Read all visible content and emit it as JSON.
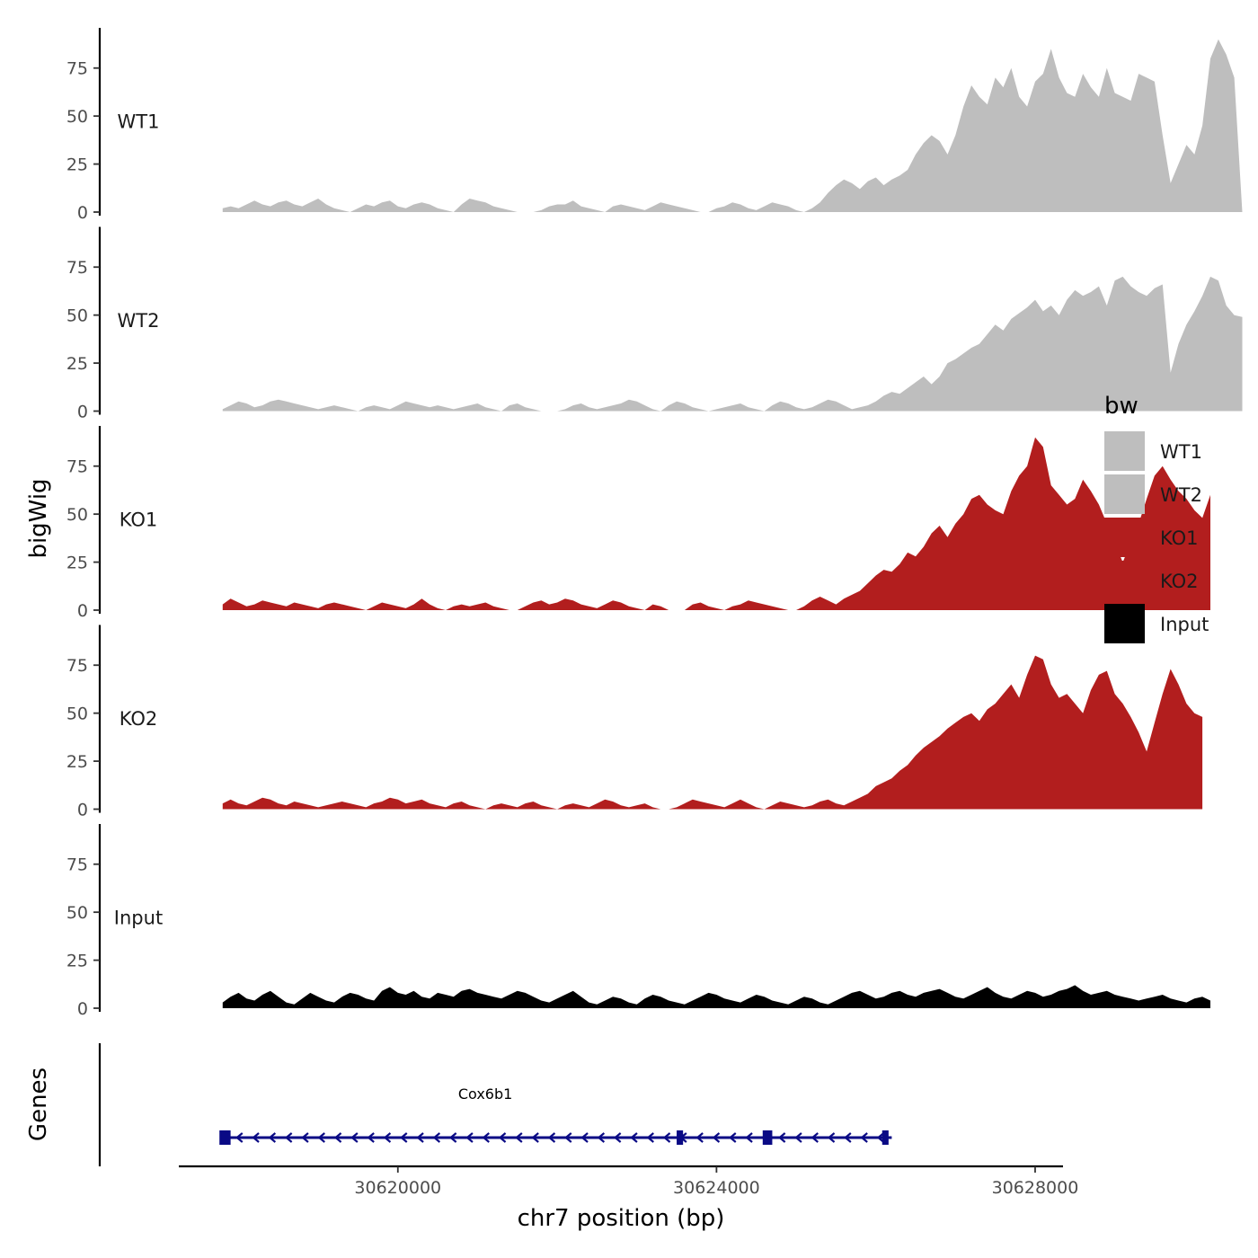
{
  "chart_data": {
    "type": "area",
    "ylabel": "bigWig",
    "xlabel": "chr7 position (bp)",
    "xlim": [
      30617250,
      30628350
    ],
    "ylim": [
      0,
      95
    ],
    "x_ticks": [
      30620000,
      30624000,
      30628000
    ],
    "x_tick_labels": [
      "30620000",
      "30624000",
      "30628000"
    ],
    "y_ticks": [
      0,
      25,
      50,
      75
    ],
    "y_tick_labels": [
      "0",
      "25",
      "50",
      "75"
    ],
    "x_start": 30617800,
    "x_step": 100,
    "tracks": [
      {
        "name": "WT1",
        "color": "#BEBEBE",
        "values": [
          2,
          3,
          2,
          4,
          6,
          4,
          3,
          5,
          6,
          4,
          3,
          5,
          7,
          4,
          2,
          1,
          0,
          2,
          4,
          3,
          5,
          6,
          3,
          2,
          4,
          5,
          4,
          2,
          1,
          0,
          4,
          7,
          6,
          5,
          3,
          2,
          1,
          0,
          0,
          0,
          1,
          3,
          4,
          4,
          6,
          3,
          2,
          1,
          0,
          3,
          4,
          3,
          2,
          1,
          3,
          5,
          4,
          3,
          2,
          1,
          0,
          0,
          2,
          3,
          5,
          4,
          2,
          1,
          3,
          5,
          4,
          3,
          1,
          0,
          2,
          5,
          10,
          14,
          17,
          15,
          12,
          16,
          18,
          14,
          17,
          19,
          22,
          30,
          36,
          40,
          37,
          30,
          40,
          55,
          66,
          60,
          56,
          70,
          65,
          75,
          60,
          55,
          68,
          72,
          85,
          70,
          62,
          60,
          72,
          65,
          60,
          75,
          62,
          60,
          58,
          72,
          70,
          68,
          40,
          15,
          25,
          35,
          30,
          45,
          80,
          90,
          82,
          70,
          0
        ]
      },
      {
        "name": "WT2",
        "color": "#BEBEBE",
        "values": [
          1,
          3,
          5,
          4,
          2,
          3,
          5,
          6,
          5,
          4,
          3,
          2,
          1,
          2,
          3,
          2,
          1,
          0,
          2,
          3,
          2,
          1,
          3,
          5,
          4,
          3,
          2,
          3,
          2,
          1,
          2,
          3,
          4,
          2,
          1,
          0,
          3,
          4,
          2,
          1,
          0,
          0,
          0,
          1,
          3,
          4,
          2,
          1,
          2,
          3,
          4,
          6,
          5,
          3,
          1,
          0,
          3,
          5,
          4,
          2,
          1,
          0,
          1,
          2,
          3,
          4,
          2,
          1,
          0,
          3,
          5,
          4,
          2,
          1,
          2,
          4,
          6,
          5,
          3,
          1,
          2,
          3,
          5,
          8,
          10,
          9,
          12,
          15,
          18,
          14,
          18,
          25,
          27,
          30,
          33,
          35,
          40,
          45,
          42,
          48,
          51,
          54,
          58,
          52,
          55,
          50,
          58,
          63,
          60,
          62,
          65,
          55,
          68,
          70,
          65,
          62,
          60,
          64,
          66,
          20,
          35,
          45,
          52,
          60,
          70,
          68,
          55,
          50,
          49
        ]
      },
      {
        "name": "KO1",
        "color": "#B21E1E",
        "values": [
          3,
          6,
          4,
          2,
          3,
          5,
          4,
          3,
          2,
          4,
          3,
          2,
          1,
          3,
          4,
          3,
          2,
          1,
          0,
          2,
          4,
          3,
          2,
          1,
          3,
          6,
          3,
          1,
          0,
          2,
          3,
          2,
          3,
          4,
          2,
          1,
          0,
          0,
          2,
          4,
          5,
          3,
          4,
          6,
          5,
          3,
          2,
          1,
          3,
          5,
          4,
          2,
          1,
          0,
          3,
          2,
          0,
          0,
          0,
          3,
          4,
          2,
          1,
          0,
          2,
          3,
          5,
          4,
          3,
          2,
          1,
          0,
          0,
          2,
          5,
          7,
          5,
          3,
          6,
          8,
          10,
          14,
          18,
          21,
          20,
          24,
          30,
          28,
          33,
          40,
          44,
          38,
          45,
          50,
          58,
          60,
          55,
          52,
          50,
          62,
          70,
          75,
          90,
          85,
          65,
          60,
          55,
          58,
          68,
          62,
          55,
          45,
          35,
          25,
          35,
          45,
          58,
          70,
          75,
          68,
          62,
          58,
          52,
          48,
          60
        ]
      },
      {
        "name": "KO2",
        "color": "#B21E1E",
        "values": [
          3,
          5,
          3,
          2,
          4,
          6,
          5,
          3,
          2,
          4,
          3,
          2,
          1,
          2,
          3,
          4,
          3,
          2,
          1,
          3,
          4,
          6,
          5,
          3,
          4,
          5,
          3,
          2,
          1,
          3,
          4,
          2,
          1,
          0,
          2,
          3,
          2,
          1,
          3,
          4,
          2,
          1,
          0,
          2,
          3,
          2,
          1,
          3,
          5,
          4,
          2,
          1,
          2,
          3,
          1,
          0,
          0,
          1,
          3,
          5,
          4,
          3,
          2,
          1,
          3,
          5,
          3,
          1,
          0,
          2,
          4,
          3,
          2,
          1,
          2,
          4,
          5,
          3,
          2,
          4,
          6,
          8,
          12,
          14,
          16,
          20,
          23,
          28,
          32,
          35,
          38,
          42,
          45,
          48,
          50,
          46,
          52,
          55,
          60,
          65,
          58,
          70,
          80,
          78,
          65,
          58,
          60,
          55,
          50,
          62,
          70,
          72,
          60,
          55,
          48,
          40,
          30,
          45,
          60,
          73,
          65,
          55,
          50,
          48
        ]
      },
      {
        "name": "Input",
        "color": "#000000",
        "values": [
          3,
          6,
          8,
          5,
          4,
          7,
          9,
          6,
          3,
          2,
          5,
          8,
          6,
          4,
          3,
          6,
          8,
          7,
          5,
          4,
          9,
          11,
          8,
          7,
          9,
          6,
          5,
          8,
          7,
          6,
          9,
          10,
          8,
          7,
          6,
          5,
          7,
          9,
          8,
          6,
          4,
          3,
          5,
          7,
          9,
          6,
          3,
          2,
          4,
          6,
          5,
          3,
          2,
          5,
          7,
          6,
          4,
          3,
          2,
          4,
          6,
          8,
          7,
          5,
          4,
          3,
          5,
          7,
          6,
          4,
          3,
          2,
          4,
          6,
          5,
          3,
          2,
          4,
          6,
          8,
          9,
          7,
          5,
          6,
          8,
          9,
          7,
          6,
          8,
          9,
          10,
          8,
          6,
          5,
          7,
          9,
          11,
          8,
          6,
          5,
          7,
          9,
          8,
          6,
          7,
          9,
          10,
          12,
          9,
          7,
          8,
          9,
          7,
          6,
          5,
          4,
          5,
          6,
          7,
          5,
          4,
          3,
          5,
          6,
          4
        ]
      }
    ],
    "legend": {
      "title": "bw",
      "position": "right",
      "entries": [
        {
          "label": "WT1",
          "color": "#BEBEBE"
        },
        {
          "label": "WT2",
          "color": "#BEBEBE"
        },
        {
          "label": "KO1",
          "color": "#B21E1E"
        },
        {
          "label": "KO2",
          "color": "#B21E1E"
        },
        {
          "label": "Input",
          "color": "#000000"
        }
      ]
    },
    "genes": {
      "title": "Genes",
      "color": "#0A0A85",
      "items": [
        {
          "name": "Cox6b1",
          "strand": "-",
          "start": 30617800,
          "end": 30626200,
          "exons": [
            [
              30617760,
              30617900
            ],
            [
              30623500,
              30623580
            ],
            [
              30624580,
              30624700
            ],
            [
              30626080,
              30626160
            ]
          ]
        }
      ]
    }
  }
}
